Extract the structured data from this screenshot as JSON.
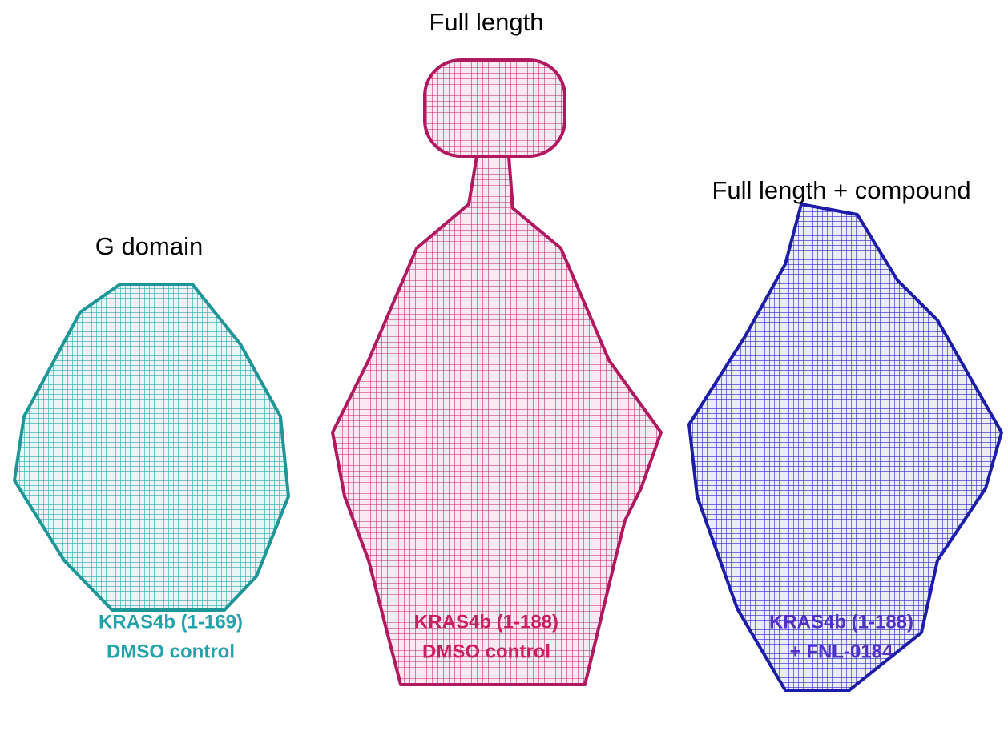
{
  "panels": [
    {
      "title": "G domain",
      "label": [
        "KRAS4b (1-169)",
        "DMSO control"
      ]
    },
    {
      "title": "Full length",
      "label": [
        "KRAS4b (1-188)",
        "DMSO control"
      ]
    },
    {
      "title": "Full length + compound",
      "label": [
        "KRAS4b (1-188)",
        "+ FNL-0184"
      ]
    }
  ]
}
